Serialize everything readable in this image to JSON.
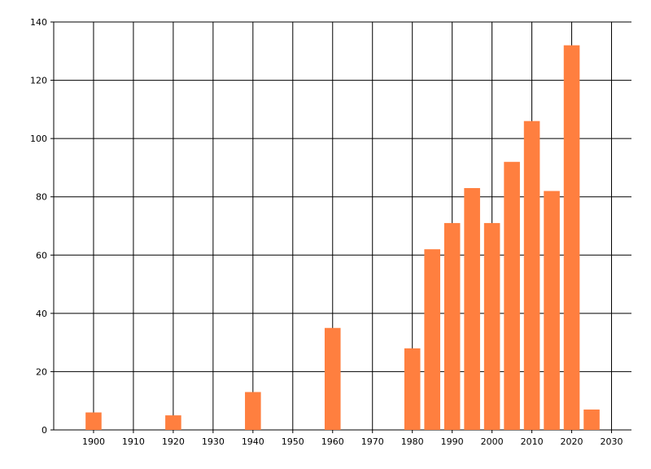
{
  "chart_data": {
    "type": "bar",
    "x": [
      1900,
      1920,
      1940,
      1960,
      1980,
      1985,
      1990,
      1995,
      2000,
      2005,
      2010,
      2015,
      2020,
      2025
    ],
    "values": [
      6,
      5,
      13,
      35,
      28,
      62,
      71,
      83,
      71,
      92,
      106,
      82,
      132,
      7
    ],
    "color": "#ff7f3f",
    "xlim": [
      1890,
      2035
    ],
    "xticks": [
      1900,
      1910,
      1920,
      1930,
      1940,
      1950,
      1960,
      1970,
      1980,
      1990,
      2000,
      2010,
      2020,
      2030
    ],
    "ylim": [
      0,
      140
    ],
    "yticks": [
      0,
      20,
      40,
      60,
      80,
      100,
      120,
      140
    ],
    "grid": true
  }
}
